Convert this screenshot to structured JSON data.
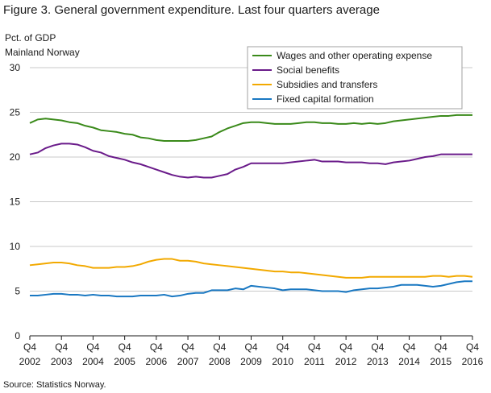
{
  "header": {
    "title": "Figure 3. General government expenditure. Last four quarters average",
    "unit_line1": "Pct. of GDP",
    "unit_line2": "Mainland  Norway"
  },
  "footer": {
    "source": "Source: Statistics Norway."
  },
  "chart_data": {
    "type": "line",
    "title": "Figure 3. General government expenditure. Last four quarters average",
    "ylabel": "Pct. of GDP",
    "ylim": [
      0,
      30
    ],
    "yticks": [
      0,
      5,
      10,
      15,
      20,
      25,
      30
    ],
    "grid": true,
    "legend_position": "top-right",
    "x_tick_quarters": [
      "Q4",
      "Q4",
      "Q4",
      "Q4",
      "Q4",
      "Q4",
      "Q4",
      "Q4",
      "Q4",
      "Q4",
      "Q4",
      "Q4",
      "Q4",
      "Q4",
      "Q4"
    ],
    "x_tick_years": [
      "2002",
      "2003",
      "2004",
      "2005",
      "2006",
      "2007",
      "2008",
      "2009",
      "2010",
      "2011",
      "2012",
      "2013",
      "2014",
      "2015",
      "2016"
    ],
    "x_start": "2002Q4",
    "x_end": "2016Q4",
    "series": [
      {
        "name": "Wages and other operating expense",
        "color": "#3a8a1a",
        "values": [
          23.8,
          24.2,
          24.3,
          24.2,
          24.1,
          23.9,
          23.8,
          23.5,
          23.3,
          23.0,
          22.9,
          22.8,
          22.6,
          22.5,
          22.2,
          22.1,
          21.9,
          21.8,
          21.8,
          21.8,
          21.8,
          21.9,
          22.1,
          22.3,
          22.8,
          23.2,
          23.5,
          23.8,
          23.9,
          23.9,
          23.8,
          23.7,
          23.7,
          23.7,
          23.8,
          23.9,
          23.9,
          23.8,
          23.8,
          23.7,
          23.7,
          23.8,
          23.7,
          23.8,
          23.7,
          23.8,
          24.0,
          24.1,
          24.2,
          24.3,
          24.4,
          24.5,
          24.6,
          24.6,
          24.7,
          24.7,
          24.7
        ]
      },
      {
        "name": "Social benefits",
        "color": "#6a1b8a",
        "values": [
          20.3,
          20.5,
          21.0,
          21.3,
          21.5,
          21.5,
          21.4,
          21.1,
          20.7,
          20.5,
          20.1,
          19.9,
          19.7,
          19.4,
          19.2,
          18.9,
          18.6,
          18.3,
          18.0,
          17.8,
          17.7,
          17.8,
          17.7,
          17.7,
          17.9,
          18.1,
          18.6,
          18.9,
          19.3,
          19.3,
          19.3,
          19.3,
          19.3,
          19.4,
          19.5,
          19.6,
          19.7,
          19.5,
          19.5,
          19.5,
          19.4,
          19.4,
          19.4,
          19.3,
          19.3,
          19.2,
          19.4,
          19.5,
          19.6,
          19.8,
          20.0,
          20.1,
          20.3,
          20.3,
          20.3,
          20.3,
          20.3
        ]
      },
      {
        "name": "Subsidies and transfers",
        "color": "#f2a900",
        "values": [
          7.9,
          8.0,
          8.1,
          8.2,
          8.2,
          8.1,
          7.9,
          7.8,
          7.6,
          7.6,
          7.6,
          7.7,
          7.7,
          7.8,
          8.0,
          8.3,
          8.5,
          8.6,
          8.6,
          8.4,
          8.4,
          8.3,
          8.1,
          8.0,
          7.9,
          7.8,
          7.7,
          7.6,
          7.5,
          7.4,
          7.3,
          7.2,
          7.2,
          7.1,
          7.1,
          7.0,
          6.9,
          6.8,
          6.7,
          6.6,
          6.5,
          6.5,
          6.5,
          6.6,
          6.6,
          6.6,
          6.6,
          6.6,
          6.6,
          6.6,
          6.6,
          6.7,
          6.7,
          6.6,
          6.7,
          6.7,
          6.6
        ]
      },
      {
        "name": "Fixed capital formation",
        "color": "#1a78c2",
        "values": [
          4.5,
          4.5,
          4.6,
          4.7,
          4.7,
          4.6,
          4.6,
          4.5,
          4.6,
          4.5,
          4.5,
          4.4,
          4.4,
          4.4,
          4.5,
          4.5,
          4.5,
          4.6,
          4.4,
          4.5,
          4.7,
          4.8,
          4.8,
          5.1,
          5.1,
          5.1,
          5.3,
          5.2,
          5.6,
          5.5,
          5.4,
          5.3,
          5.1,
          5.2,
          5.2,
          5.2,
          5.1,
          5.0,
          5.0,
          5.0,
          4.9,
          5.1,
          5.2,
          5.3,
          5.3,
          5.4,
          5.5,
          5.7,
          5.7,
          5.7,
          5.6,
          5.5,
          5.6,
          5.8,
          6.0,
          6.1,
          6.1
        ]
      }
    ]
  }
}
